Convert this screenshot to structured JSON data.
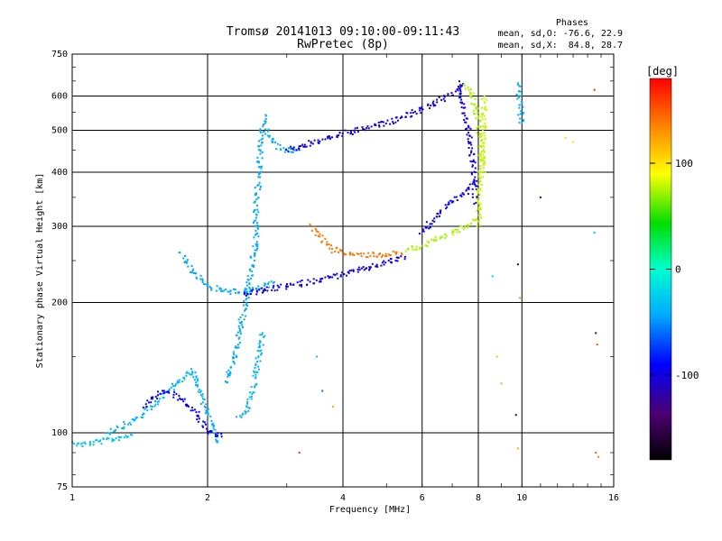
{
  "header": {
    "title_line1": "Tromsø 20141013 09:10:00-09:11:43",
    "title_line2": "RwPretec (8p)",
    "phase_head": "Phases",
    "phase_o": "mean, sd,O: -76.6, 22.9",
    "phase_x": "mean, sd,X:  84.8, 28.7"
  },
  "colorbar": {
    "unit": "[deg]",
    "ticks": [
      100,
      0,
      -100
    ],
    "range": [
      -180,
      180
    ]
  },
  "chart_data": {
    "type": "scatter",
    "xlabel": "Frequency [MHz]",
    "ylabel": "Stationary phase Virtual Height [km]",
    "x_scale": "log",
    "y_scale": "log",
    "xlim": [
      1,
      16
    ],
    "ylim": [
      75,
      750
    ],
    "x_ticks": [
      1,
      2,
      4,
      6,
      8,
      10,
      16
    ],
    "y_ticks": [
      75,
      100,
      200,
      300,
      400,
      500,
      600,
      750
    ],
    "grid": true,
    "color_by": "phase_deg",
    "traces": [
      {
        "x": [
          0.95,
          1.05,
          1.2,
          1.35
        ],
        "y": [
          95,
          94,
          96,
          99
        ],
        "phase": -30
      },
      {
        "x": [
          1.2,
          1.4,
          1.55,
          1.7,
          1.85,
          1.95,
          2.1
        ],
        "y": [
          100,
          108,
          118,
          130,
          140,
          120,
          95
        ],
        "phase": -40
      },
      {
        "x": [
          1.45,
          1.6,
          1.75,
          1.9,
          2.0,
          2.15
        ],
        "y": [
          115,
          125,
          120,
          110,
          100,
          98
        ],
        "phase": -95
      },
      {
        "x": [
          2.2,
          2.3,
          2.35,
          2.4,
          2.45,
          2.5,
          2.55,
          2.6
        ],
        "y": [
          130,
          150,
          170,
          190,
          210,
          240,
          270,
          300
        ],
        "phase": -45
      },
      {
        "x": [
          2.35,
          2.45,
          2.55,
          2.6,
          2.65
        ],
        "y": [
          108,
          112,
          130,
          150,
          170
        ],
        "phase": -40
      },
      {
        "x": [
          2.55,
          2.58,
          2.6,
          2.62,
          2.65,
          2.7
        ],
        "y": [
          300,
          350,
          400,
          450,
          500,
          540
        ],
        "phase": -45
      },
      {
        "x": [
          2.7,
          2.8,
          2.9,
          3.0,
          3.2
        ],
        "y": [
          500,
          470,
          455,
          450,
          450
        ],
        "phase": -45
      },
      {
        "x": [
          1.75,
          1.85,
          2.0,
          2.2,
          2.4,
          2.6,
          2.8
        ],
        "y": [
          260,
          235,
          218,
          212,
          212,
          216,
          222
        ],
        "phase": -45
      },
      {
        "x": [
          2.4,
          2.6,
          3.0,
          3.5,
          4.0,
          4.5,
          5.0,
          5.5
        ],
        "y": [
          210,
          212,
          218,
          225,
          232,
          240,
          248,
          255
        ],
        "phase": -100
      },
      {
        "x": [
          3.0,
          3.5,
          4.0,
          4.5,
          5.0,
          5.5,
          6.0
        ],
        "y": [
          450,
          470,
          490,
          505,
          520,
          540,
          560
        ],
        "phase": -100
      },
      {
        "x": [
          6.0,
          6.5,
          7.0,
          7.4
        ],
        "y": [
          560,
          580,
          610,
          640
        ],
        "phase": -100
      },
      {
        "x": [
          3.4,
          3.6,
          3.8,
          4.2,
          4.8,
          5.4
        ],
        "y": [
          300,
          280,
          265,
          258,
          258,
          260
        ],
        "phase": 140
      },
      {
        "x": [
          5.5,
          6.0,
          6.5,
          7.0,
          7.5,
          7.9
        ],
        "y": [
          265,
          270,
          280,
          290,
          300,
          310
        ],
        "phase": 75
      },
      {
        "x": [
          6.0,
          6.5,
          7.0,
          7.5,
          7.8
        ],
        "y": [
          290,
          320,
          340,
          360,
          380
        ],
        "phase": -95
      },
      {
        "x": [
          7.2,
          7.4,
          7.6,
          7.8,
          7.9
        ],
        "y": [
          640,
          580,
          500,
          420,
          340
        ],
        "phase": -100
      },
      {
        "x": [
          7.5,
          7.7,
          7.8,
          8.0,
          8.2
        ],
        "y": [
          640,
          610,
          580,
          520,
          400
        ],
        "phase": 75
      },
      {
        "x": [
          8.0,
          8.1,
          8.2,
          8.25
        ],
        "y": [
          300,
          400,
          500,
          600
        ],
        "phase": 80
      },
      {
        "x": [
          9.8,
          9.9,
          10.0
        ],
        "y": [
          640,
          580,
          520
        ],
        "phase": -40
      }
    ],
    "isolated_points": [
      {
        "x": 8.6,
        "y": 230,
        "phase": -30
      },
      {
        "x": 8.8,
        "y": 150,
        "phase": 120
      },
      {
        "x": 9.0,
        "y": 130,
        "phase": 120
      },
      {
        "x": 9.8,
        "y": 245,
        "phase": -150
      },
      {
        "x": 9.9,
        "y": 205,
        "phase": 60
      },
      {
        "x": 9.7,
        "y": 110,
        "phase": -150
      },
      {
        "x": 9.8,
        "y": 92,
        "phase": 120
      },
      {
        "x": 3.2,
        "y": 90,
        "phase": 160
      },
      {
        "x": 3.5,
        "y": 150,
        "phase": -30
      },
      {
        "x": 3.6,
        "y": 125,
        "phase": -60
      },
      {
        "x": 3.8,
        "y": 115,
        "phase": 120
      },
      {
        "x": 14.5,
        "y": 620,
        "phase": 170
      },
      {
        "x": 13.0,
        "y": 470,
        "phase": 100
      },
      {
        "x": 11.0,
        "y": 350,
        "phase": -100
      },
      {
        "x": 14.5,
        "y": 290,
        "phase": -30
      },
      {
        "x": 14.6,
        "y": 170,
        "phase": -100
      },
      {
        "x": 14.7,
        "y": 160,
        "phase": 150
      },
      {
        "x": 14.6,
        "y": 90,
        "phase": 150
      },
      {
        "x": 14.8,
        "y": 88,
        "phase": 140
      },
      {
        "x": 12.5,
        "y": 480,
        "phase": 80
      }
    ]
  }
}
